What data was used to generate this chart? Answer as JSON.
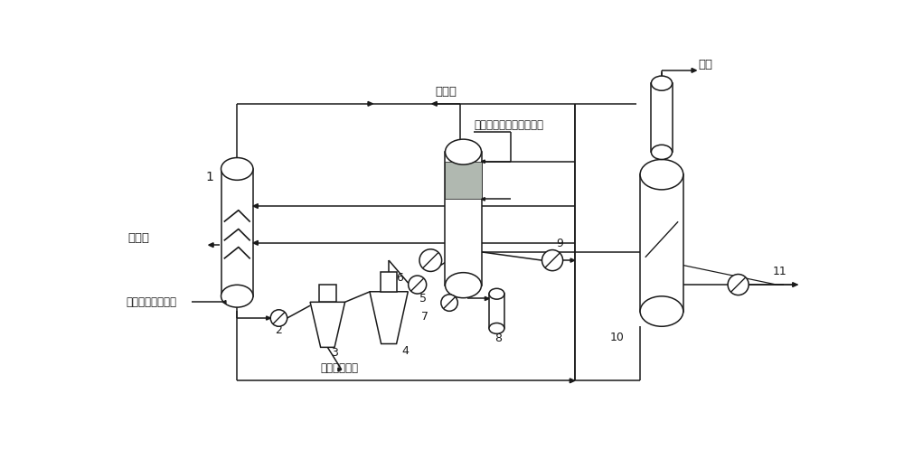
{
  "bg_color": "#ffffff",
  "line_color": "#1a1a1a",
  "figsize": [
    10.0,
    5.08
  ],
  "dpi": 100,
  "labels": {
    "1": "1",
    "2": "2",
    "3": "3",
    "4": "4",
    "5": "5",
    "6": "6",
    "7": "7",
    "8": "8",
    "9": "9",
    "10": "10",
    "11": "11",
    "product_gas_left": "产品气",
    "high_temp": "高温萃取剂加注点",
    "product_gas_mid": "产品气",
    "wash_tower": "水洗塔阻垢分散剂加注点",
    "oil": "油",
    "catalyst_waste": "含催化剂废水",
    "recycle": "回炼"
  }
}
